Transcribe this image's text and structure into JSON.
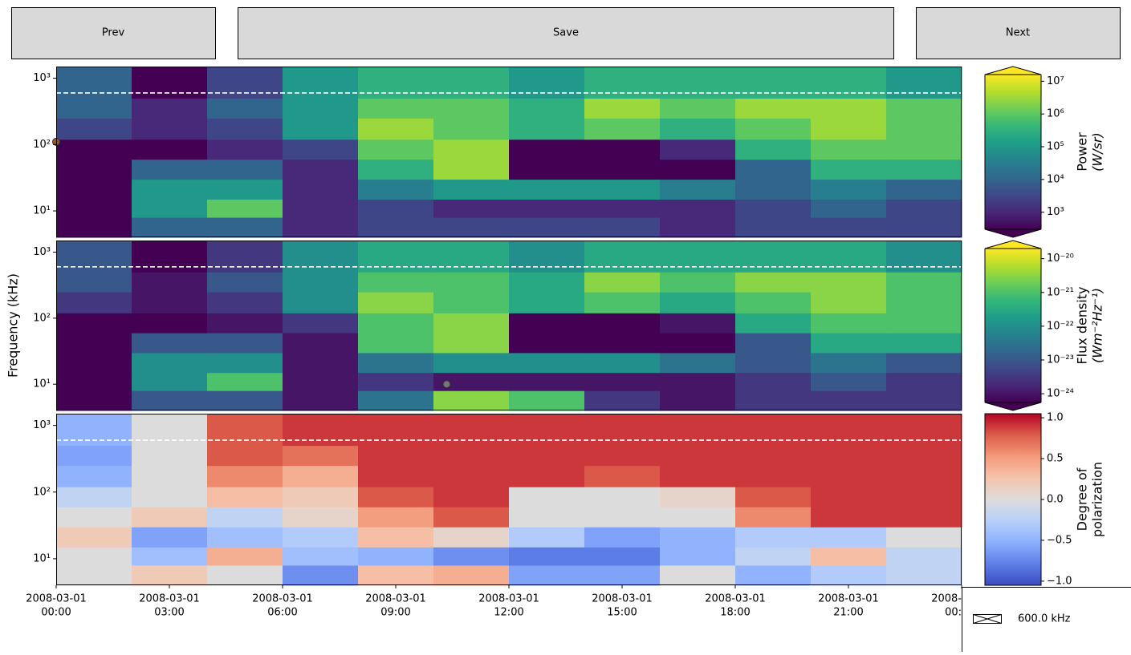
{
  "buttons": [
    "Prev",
    "Save",
    "Next"
  ],
  "legend": {
    "label": "600.0 kHz"
  },
  "chart_data": [
    {
      "type": "heatmap",
      "yscale": "log",
      "ylim": [
        4,
        1500
      ],
      "yticks": [
        {
          "value": 10,
          "label": "10¹"
        },
        {
          "value": 100,
          "label": "10²"
        },
        {
          "value": 1000,
          "label": "10³"
        }
      ],
      "xlim": [
        0,
        24
      ],
      "xbins": [
        0,
        2,
        4,
        6,
        8,
        10,
        12,
        14,
        16,
        18,
        20,
        22,
        24
      ],
      "ybins": [
        4,
        8,
        15,
        30,
        60,
        120,
        250,
        500,
        1500
      ],
      "z": [
        [
          300,
          10000,
          10000,
          1000,
          3000,
          3000,
          3000,
          3000,
          1000,
          3000,
          3000,
          3000
        ],
        [
          300,
          100000,
          1000000,
          1000,
          3000,
          1000,
          1000,
          1000,
          1000,
          3000,
          10000,
          3000
        ],
        [
          300,
          100000,
          100000,
          1000,
          30000,
          100000,
          100000,
          100000,
          30000,
          10000,
          30000,
          10000
        ],
        [
          300,
          10000,
          10000,
          1000,
          300000,
          3000000,
          300,
          300,
          300,
          10000,
          300000,
          300000
        ],
        [
          300,
          300,
          1000,
          3000,
          1000000,
          3000000,
          300,
          300,
          1000,
          300000,
          1000000,
          1000000
        ],
        [
          3000,
          1000,
          3000,
          100000,
          3000000,
          1000000,
          300000,
          1000000,
          300000,
          1000000,
          3000000,
          1000000
        ],
        [
          10000,
          1000,
          10000,
          100000,
          1000000,
          1000000,
          300000,
          3000000,
          1000000,
          3000000,
          3000000,
          1000000
        ],
        [
          10000,
          300,
          3000,
          100000,
          300000,
          300000,
          100000,
          300000,
          300000,
          300000,
          300000,
          100000
        ]
      ],
      "colorbar": {
        "label": [
          "Power",
          "(W/sr)"
        ],
        "scale": "log",
        "colormap": "viridis",
        "extend": "both",
        "lim": [
          300,
          16000000
        ],
        "ticks": [
          {
            "value": 1000,
            "label": "10³"
          },
          {
            "value": 10000,
            "label": "10⁴"
          },
          {
            "value": 100000,
            "label": "10⁵"
          },
          {
            "value": 1000000,
            "label": "10⁶"
          },
          {
            "value": 10000000,
            "label": "10⁷"
          }
        ]
      },
      "hline": 600,
      "points": [
        {
          "x": 0,
          "y": 110,
          "color": "#a0522d"
        }
      ]
    },
    {
      "type": "heatmap",
      "yscale": "log",
      "ylim": [
        4,
        1500
      ],
      "ylabel": "Frequency (kHz)",
      "yticks": [
        {
          "value": 10,
          "label": "10¹"
        },
        {
          "value": 100,
          "label": "10²"
        },
        {
          "value": 1000,
          "label": "10³"
        }
      ],
      "xlim": [
        0,
        24
      ],
      "xbins": [
        0,
        2,
        4,
        6,
        8,
        10,
        12,
        14,
        16,
        18,
        20,
        22,
        24
      ],
      "ybins": [
        4,
        8,
        15,
        30,
        60,
        120,
        250,
        500,
        1500
      ],
      "z": [
        [
          3e-25,
          1e-23,
          1e-23,
          1e-24,
          3e-23,
          3e-21,
          1e-21,
          3e-24,
          1e-24,
          3e-24,
          3e-24,
          3e-24
        ],
        [
          3e-25,
          1e-22,
          1e-21,
          1e-24,
          3e-24,
          1e-24,
          1e-24,
          1e-24,
          1e-24,
          3e-24,
          1e-23,
          3e-24
        ],
        [
          3e-25,
          1e-22,
          1e-22,
          1e-24,
          3e-23,
          1e-22,
          1e-22,
          1e-22,
          3e-23,
          1e-23,
          3e-23,
          1e-23
        ],
        [
          3e-25,
          1e-23,
          1e-23,
          1e-24,
          1e-21,
          3e-21,
          3e-25,
          3e-25,
          3e-25,
          1e-23,
          3e-22,
          3e-22
        ],
        [
          3e-25,
          3e-25,
          1e-24,
          3e-24,
          1e-21,
          3e-21,
          3e-25,
          3e-25,
          1e-24,
          3e-22,
          1e-21,
          1e-21
        ],
        [
          3e-24,
          1e-24,
          3e-24,
          1e-22,
          3e-21,
          1e-21,
          3e-22,
          1e-21,
          3e-22,
          1e-21,
          3e-21,
          1e-21
        ],
        [
          1e-23,
          1e-24,
          1e-23,
          1e-22,
          1e-21,
          1e-21,
          3e-22,
          3e-21,
          1e-21,
          3e-21,
          3e-21,
          1e-21
        ],
        [
          1e-23,
          3e-25,
          3e-24,
          1e-22,
          3e-22,
          3e-22,
          1e-22,
          3e-22,
          3e-22,
          3e-22,
          3e-22,
          1e-22
        ]
      ],
      "colorbar": {
        "label": [
          "Flux density",
          "(Wm⁻²Hz⁻¹)"
        ],
        "scale": "log",
        "colormap": "viridis",
        "extend": "both",
        "lim": [
          5.5e-25,
          2e-20
        ],
        "ticks": [
          {
            "value": 1e-24,
            "label": "10⁻²⁴"
          },
          {
            "value": 1e-23,
            "label": "10⁻²³"
          },
          {
            "value": 1e-22,
            "label": "10⁻²²"
          },
          {
            "value": 1e-21,
            "label": "10⁻²¹"
          },
          {
            "value": 1e-20,
            "label": "10⁻²⁰"
          }
        ]
      },
      "hline": 600,
      "points": [
        {
          "x": 10.35,
          "y": 10,
          "color": "#777777"
        }
      ]
    },
    {
      "type": "heatmap",
      "yscale": "log",
      "ylim": [
        4,
        1500
      ],
      "yticks": [
        {
          "value": 10,
          "label": "10¹"
        },
        {
          "value": 100,
          "label": "10²"
        },
        {
          "value": 1000,
          "label": "10³"
        }
      ],
      "xlim": [
        0,
        24
      ],
      "xticks": [
        {
          "value": 0,
          "label": [
            "2008-03-01",
            "00:00"
          ]
        },
        {
          "value": 3,
          "label": [
            "2008-03-01",
            "03:00"
          ]
        },
        {
          "value": 6,
          "label": [
            "2008-03-01",
            "06:00"
          ]
        },
        {
          "value": 9,
          "label": [
            "2008-03-01",
            "09:00"
          ]
        },
        {
          "value": 12,
          "label": [
            "2008-03-01",
            "12:00"
          ]
        },
        {
          "value": 15,
          "label": [
            "2008-03-01",
            "15:00"
          ]
        },
        {
          "value": 18,
          "label": [
            "2008-03-01",
            "18:00"
          ]
        },
        {
          "value": 21,
          "label": [
            "2008-03-01",
            "21:00"
          ]
        },
        {
          "value": 24,
          "label": [
            "2008-",
            "00:"
          ]
        }
      ],
      "xbins": [
        0,
        2,
        4,
        6,
        8,
        10,
        12,
        14,
        16,
        18,
        20,
        22,
        24
      ],
      "ybins": [
        4,
        8,
        15,
        30,
        60,
        120,
        250,
        500,
        1500
      ],
      "z": [
        [
          0,
          0.2,
          0,
          -0.7,
          0.3,
          0.4,
          -0.6,
          -0.6,
          0,
          -0.5,
          -0.3,
          -0.2
        ],
        [
          0,
          -0.4,
          0.4,
          -0.4,
          -0.5,
          -0.7,
          -0.8,
          -0.8,
          -0.5,
          -0.2,
          0.3,
          -0.2
        ],
        [
          0.2,
          -0.6,
          -0.4,
          -0.3,
          0.3,
          0.1,
          -0.3,
          -0.6,
          -0.5,
          -0.3,
          -0.3,
          0
        ],
        [
          0,
          0.2,
          -0.2,
          0.1,
          0.5,
          0.8,
          0,
          0,
          0,
          0.6,
          0.9,
          0.9
        ],
        [
          -0.2,
          0,
          0.3,
          0.2,
          0.8,
          0.9,
          0,
          0,
          0.1,
          0.8,
          0.9,
          0.9
        ],
        [
          -0.5,
          0,
          0.6,
          0.4,
          0.9,
          0.9,
          0.9,
          0.8,
          0.9,
          0.9,
          0.9,
          0.9
        ],
        [
          -0.6,
          0,
          0.8,
          0.7,
          0.9,
          0.9,
          0.9,
          0.9,
          0.9,
          0.9,
          0.9,
          0.9
        ],
        [
          -0.5,
          0,
          0.8,
          0.9,
          0.9,
          0.9,
          0.9,
          0.9,
          0.9,
          0.9,
          0.9,
          0.9
        ]
      ],
      "colorbar": {
        "label": [
          "Degree of",
          "polarization"
        ],
        "scale": "linear",
        "colormap": "coolwarm",
        "extend": "neither",
        "lim": [
          -1.05,
          1.05
        ],
        "ticks": [
          {
            "value": -1,
            "label": "−1.0"
          },
          {
            "value": -0.5,
            "label": "−0.5"
          },
          {
            "value": 0,
            "label": "0.0"
          },
          {
            "value": 0.5,
            "label": "0.5"
          },
          {
            "value": 1,
            "label": "1.0"
          }
        ]
      },
      "hline": 600
    }
  ]
}
